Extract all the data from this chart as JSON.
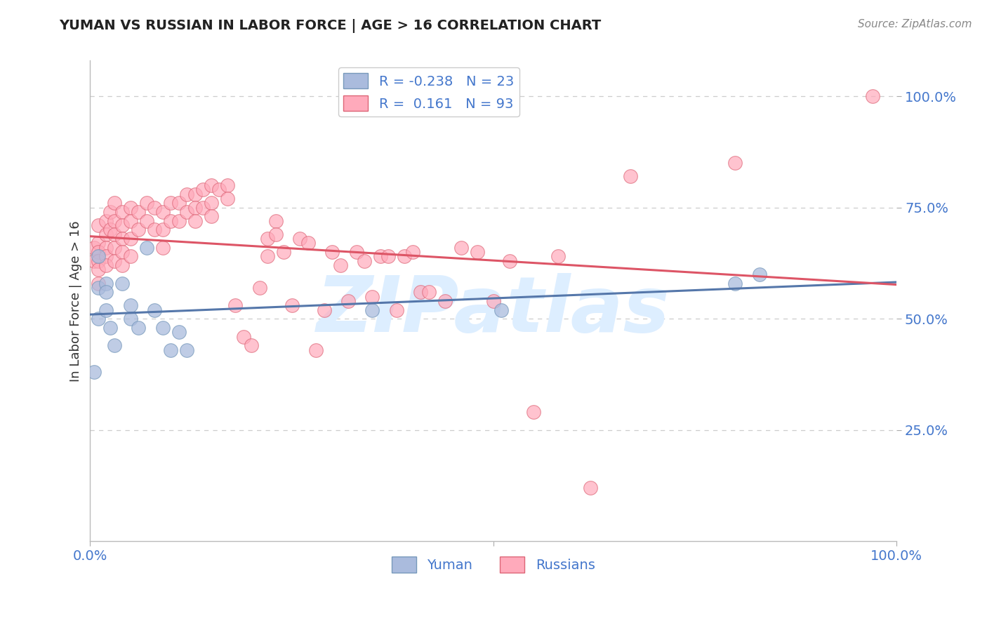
{
  "title": "YUMAN VS RUSSIAN IN LABOR FORCE | AGE > 16 CORRELATION CHART",
  "source_text": "Source: ZipAtlas.com",
  "ylabel": "In Labor Force | Age > 16",
  "yuman_R": -0.238,
  "yuman_N": 23,
  "russian_R": 0.161,
  "russian_N": 93,
  "xlim": [
    0.0,
    1.0
  ],
  "ylim": [
    0.0,
    1.08
  ],
  "background_color": "#ffffff",
  "grid_color": "#cccccc",
  "yuman_color": "#aabbdd",
  "russian_color": "#ffaabb",
  "yuman_edge_color": "#7799bb",
  "russian_edge_color": "#dd6677",
  "yuman_line_color": "#5577aa",
  "russian_line_color": "#dd5566",
  "tick_label_color": "#4477cc",
  "watermark_color": "#ddeeff",
  "watermark_text": "ZIPatlas",
  "legend_label_color": "#4477cc",
  "yuman_x": [
    0.005,
    0.01,
    0.01,
    0.01,
    0.02,
    0.02,
    0.02,
    0.025,
    0.03,
    0.04,
    0.05,
    0.05,
    0.06,
    0.07,
    0.08,
    0.09,
    0.1,
    0.11,
    0.12,
    0.35,
    0.51,
    0.8,
    0.83
  ],
  "yuman_y": [
    0.38,
    0.64,
    0.57,
    0.5,
    0.58,
    0.56,
    0.52,
    0.48,
    0.44,
    0.58,
    0.53,
    0.5,
    0.48,
    0.66,
    0.52,
    0.48,
    0.43,
    0.47,
    0.43,
    0.52,
    0.52,
    0.58,
    0.6
  ],
  "russian_x": [
    0.005,
    0.005,
    0.01,
    0.01,
    0.01,
    0.01,
    0.01,
    0.01,
    0.02,
    0.02,
    0.02,
    0.02,
    0.02,
    0.025,
    0.025,
    0.03,
    0.03,
    0.03,
    0.03,
    0.03,
    0.04,
    0.04,
    0.04,
    0.04,
    0.04,
    0.05,
    0.05,
    0.05,
    0.05,
    0.06,
    0.06,
    0.07,
    0.07,
    0.08,
    0.08,
    0.09,
    0.09,
    0.09,
    0.1,
    0.1,
    0.11,
    0.11,
    0.12,
    0.12,
    0.13,
    0.13,
    0.13,
    0.14,
    0.14,
    0.15,
    0.15,
    0.15,
    0.16,
    0.17,
    0.17,
    0.18,
    0.19,
    0.2,
    0.21,
    0.22,
    0.22,
    0.23,
    0.23,
    0.24,
    0.25,
    0.26,
    0.27,
    0.28,
    0.29,
    0.3,
    0.31,
    0.32,
    0.33,
    0.34,
    0.35,
    0.36,
    0.37,
    0.38,
    0.39,
    0.4,
    0.41,
    0.42,
    0.44,
    0.46,
    0.48,
    0.5,
    0.52,
    0.55,
    0.58,
    0.62,
    0.67,
    0.8,
    0.97
  ],
  "russian_y": [
    0.66,
    0.63,
    0.71,
    0.67,
    0.65,
    0.63,
    0.61,
    0.58,
    0.72,
    0.69,
    0.66,
    0.64,
    0.62,
    0.74,
    0.7,
    0.76,
    0.72,
    0.69,
    0.66,
    0.63,
    0.74,
    0.71,
    0.68,
    0.65,
    0.62,
    0.75,
    0.72,
    0.68,
    0.64,
    0.74,
    0.7,
    0.76,
    0.72,
    0.75,
    0.7,
    0.74,
    0.7,
    0.66,
    0.76,
    0.72,
    0.76,
    0.72,
    0.78,
    0.74,
    0.78,
    0.75,
    0.72,
    0.79,
    0.75,
    0.8,
    0.76,
    0.73,
    0.79,
    0.8,
    0.77,
    0.53,
    0.46,
    0.44,
    0.57,
    0.68,
    0.64,
    0.72,
    0.69,
    0.65,
    0.53,
    0.68,
    0.67,
    0.43,
    0.52,
    0.65,
    0.62,
    0.54,
    0.65,
    0.63,
    0.55,
    0.64,
    0.64,
    0.52,
    0.64,
    0.65,
    0.56,
    0.56,
    0.54,
    0.66,
    0.65,
    0.54,
    0.63,
    0.29,
    0.64,
    0.12,
    0.82,
    0.85,
    1.0
  ]
}
